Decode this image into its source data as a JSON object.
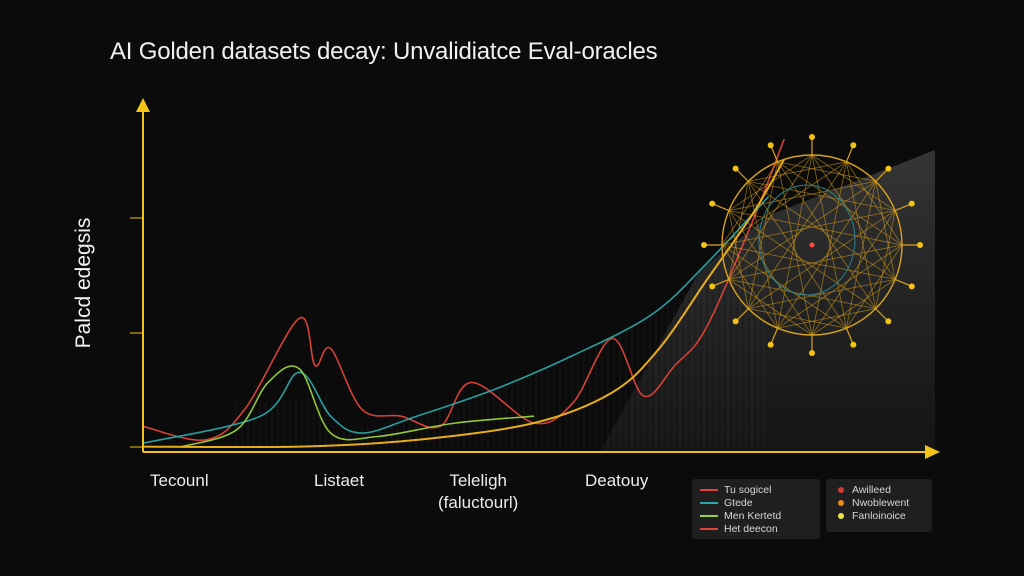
{
  "chart_data": {
    "type": "line",
    "title": "AI Golden datasets decay: Unvalidiatce Eval-oracles",
    "ylabel": "Palcd edegsis",
    "categories": [
      {
        "label": "Tecounl",
        "x": 0.05
      },
      {
        "label": "Listaet",
        "x": 0.26
      },
      {
        "label": "Teleligh",
        "label2": "(faluctourl)",
        "x": 0.5
      },
      {
        "label": "Deatouy",
        "x": 0.71
      }
    ],
    "ylim": [
      0,
      1
    ],
    "xlim": [
      0,
      1
    ],
    "series": [
      {
        "name": "Tu sogicel",
        "color": "#e0443a",
        "x": [
          0.0,
          0.08,
          0.13,
          0.2,
          0.22,
          0.24,
          0.28,
          0.33,
          0.38,
          0.42,
          0.5,
          0.55,
          0.6,
          0.64,
          0.68,
          0.72,
          0.78,
          0.82
        ],
        "y": [
          0.07,
          0.03,
          0.12,
          0.39,
          0.25,
          0.3,
          0.12,
          0.1,
          0.07,
          0.2,
          0.08,
          0.14,
          0.33,
          0.16,
          0.25,
          0.36,
          0.68,
          0.92
        ]
      },
      {
        "name": "Gtede",
        "color": "#2aa6a6",
        "x": [
          0.0,
          0.15,
          0.2,
          0.24,
          0.28,
          0.35,
          0.45,
          0.55,
          0.65,
          0.72,
          0.8
        ],
        "y": [
          0.02,
          0.1,
          0.23,
          0.1,
          0.05,
          0.1,
          0.18,
          0.28,
          0.4,
          0.55,
          0.75
        ]
      },
      {
        "name": "Men Kertetd",
        "color": "#9bd13a",
        "x": [
          0.05,
          0.12,
          0.16,
          0.2,
          0.24,
          0.3,
          0.4,
          0.5
        ],
        "y": [
          0.01,
          0.06,
          0.2,
          0.24,
          0.05,
          0.04,
          0.08,
          0.1
        ]
      },
      {
        "name": "Het deecon",
        "color": "#f2b51a",
        "x": [
          0.0,
          0.2,
          0.35,
          0.5,
          0.6,
          0.66,
          0.72,
          0.78,
          0.82
        ],
        "y": [
          0.01,
          0.01,
          0.03,
          0.08,
          0.17,
          0.3,
          0.5,
          0.7,
          0.86
        ]
      }
    ],
    "legend_markers": [
      {
        "name": "Awilleed",
        "color": "#d43b32"
      },
      {
        "name": "Nwoblewent",
        "color": "#e8891c"
      },
      {
        "name": "Fanloinoice",
        "color": "#ece64a"
      }
    ],
    "legend_lines_labels": [
      "Tu sogicel",
      "Gtede",
      "Men Kertetd",
      "Het deecon"
    ],
    "axis_color": "#f2c314",
    "grid": false,
    "legend_placement": "bottom-right"
  }
}
